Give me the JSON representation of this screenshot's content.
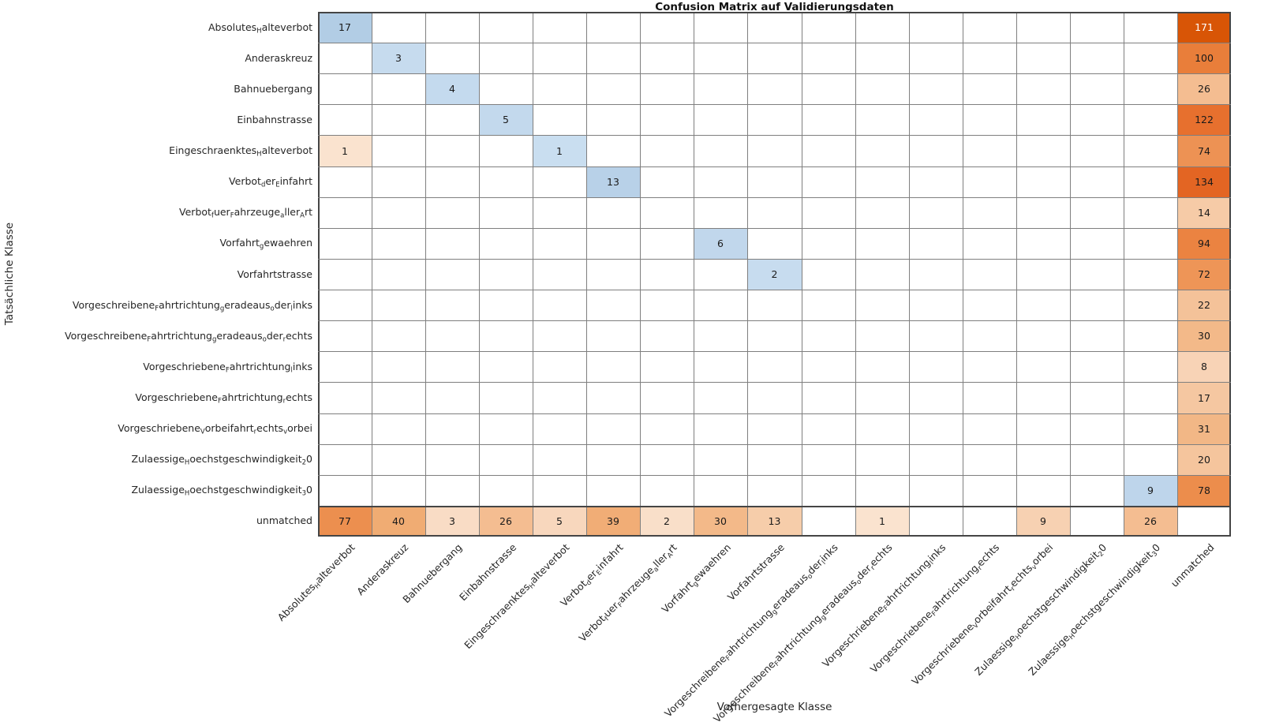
{
  "title": "Confusion Matrix auf Validierungsdaten",
  "axes": {
    "x_label": "Vorhergesagte Klasse",
    "y_label": "Tatsächliche Klasse"
  },
  "chart_data": {
    "type": "heatmap",
    "subtype": "confusion_matrix",
    "label_format_note": "underscores mark subscripts: 'Absolutes_Halteverbot' renders as Absolutes(sub H)alteverbot",
    "categories": [
      "Absolutes_Halteverbot",
      "Anderaskreuz",
      "Bahnuebergang",
      "Einbahnstrasse",
      "Eingeschraenktes_Halteverbot",
      "Verbot_der_Einfahrt",
      "Verbot_fuer_Fahrzeuge_aller_Art",
      "Vorfahrt_gewaehren",
      "Vorfahrtstrasse",
      "Vorgeschreibene_Fahrtrichtung_geradeaus_oder_links",
      "Vorgeschreibene_Fahrtrichtung_geradeaus_oder_rechts",
      "Vorgeschriebene_Fahrtrichtung_links",
      "Vorgeschriebene_Fahrtrichtung_rechts",
      "Vorgeschriebene_Vorbeifahrt_rechts_vorbei",
      "Zulaessige_Hoechstgeschwindigkeit_20",
      "Zulaessige_Hoechstgeschwindigkeit_30",
      "unmatched"
    ],
    "x_categories_same_as_y": true,
    "matrix": [
      [
        17,
        null,
        null,
        null,
        null,
        null,
        null,
        null,
        null,
        null,
        null,
        null,
        null,
        null,
        null,
        null,
        171
      ],
      [
        null,
        3,
        null,
        null,
        null,
        null,
        null,
        null,
        null,
        null,
        null,
        null,
        null,
        null,
        null,
        null,
        100
      ],
      [
        null,
        null,
        4,
        null,
        null,
        null,
        null,
        null,
        null,
        null,
        null,
        null,
        null,
        null,
        null,
        null,
        26
      ],
      [
        null,
        null,
        null,
        5,
        null,
        null,
        null,
        null,
        null,
        null,
        null,
        null,
        null,
        null,
        null,
        null,
        122
      ],
      [
        1,
        null,
        null,
        null,
        1,
        null,
        null,
        null,
        null,
        null,
        null,
        null,
        null,
        null,
        null,
        null,
        74
      ],
      [
        null,
        null,
        null,
        null,
        null,
        13,
        null,
        null,
        null,
        null,
        null,
        null,
        null,
        null,
        null,
        null,
        134
      ],
      [
        null,
        null,
        null,
        null,
        null,
        null,
        null,
        null,
        null,
        null,
        null,
        null,
        null,
        null,
        null,
        null,
        14
      ],
      [
        null,
        null,
        null,
        null,
        null,
        null,
        null,
        6,
        null,
        null,
        null,
        null,
        null,
        null,
        null,
        null,
        94
      ],
      [
        null,
        null,
        null,
        null,
        null,
        null,
        null,
        null,
        2,
        null,
        null,
        null,
        null,
        null,
        null,
        null,
        72
      ],
      [
        null,
        null,
        null,
        null,
        null,
        null,
        null,
        null,
        null,
        null,
        null,
        null,
        null,
        null,
        null,
        null,
        22
      ],
      [
        null,
        null,
        null,
        null,
        null,
        null,
        null,
        null,
        null,
        null,
        null,
        null,
        null,
        null,
        null,
        null,
        30
      ],
      [
        null,
        null,
        null,
        null,
        null,
        null,
        null,
        null,
        null,
        null,
        null,
        null,
        null,
        null,
        null,
        null,
        8
      ],
      [
        null,
        null,
        null,
        null,
        null,
        null,
        null,
        null,
        null,
        null,
        null,
        null,
        null,
        null,
        null,
        null,
        17
      ],
      [
        null,
        null,
        null,
        null,
        null,
        null,
        null,
        null,
        null,
        null,
        null,
        null,
        null,
        null,
        null,
        null,
        31
      ],
      [
        null,
        null,
        null,
        null,
        null,
        null,
        null,
        null,
        null,
        null,
        null,
        null,
        null,
        null,
        null,
        null,
        20
      ],
      [
        null,
        null,
        null,
        null,
        null,
        null,
        null,
        null,
        null,
        null,
        null,
        null,
        null,
        null,
        null,
        9,
        78
      ],
      [
        77,
        40,
        3,
        26,
        5,
        39,
        2,
        30,
        13,
        null,
        1,
        null,
        null,
        9,
        null,
        26,
        null
      ]
    ],
    "diagonal_colormap": "Blues",
    "off_diagonal_colormap": "Oranges",
    "value_colors": {
      "blue": {
        "1": "#c9def0",
        "2": "#c7dcef",
        "3": "#c6dbee",
        "4": "#c4daee",
        "5": "#c3d9ed",
        "6": "#c1d7ec",
        "9": "#bed5eb",
        "13": "#b8d1e8",
        "17": "#b2cde5"
      },
      "orange": {
        "1": "#fae3cf",
        "2": "#f9dfc9",
        "3": "#f9dcc5",
        "5": "#f8d7bd",
        "8": "#f8d3b6",
        "9": "#f7d1b2",
        "13": "#f6cdaa",
        "14": "#f6cba7",
        "17": "#f5c7a1",
        "20": "#f5c59d",
        "22": "#f4c299",
        "26": "#f4bd91",
        "30": "#f3b989",
        "31": "#f2b786",
        "39": "#f1ad76",
        "40": "#f0ac73",
        "72": "#ee9557",
        "74": "#ed9254",
        "77": "#ec8f4f",
        "78": "#ec8d4c",
        "94": "#eb8341",
        "100": "#e97e3a",
        "122": "#e7702e",
        "134": "#e36523",
        "171": "#d85506"
      }
    },
    "colors": {
      "background": "#ffffff",
      "empty_cell": "#ffffff",
      "grid_line": "#7f7f7f",
      "frame_line": "#454545",
      "cell_text_dark": "#1a1a1a",
      "cell_text_light": "#ffffff",
      "light_text_threshold": 150
    },
    "legend": null,
    "grid": true
  }
}
